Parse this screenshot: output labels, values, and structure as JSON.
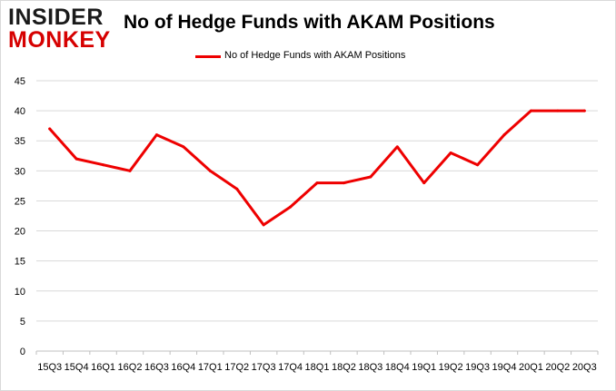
{
  "logo": {
    "line1": "INSIDER",
    "line2": "MONKEY"
  },
  "colors": {
    "series": "#ee0000",
    "grid": "#d9d9d9",
    "logo_dark": "#1a1a1a",
    "logo_red": "#d60000"
  },
  "chart_data": {
    "type": "line",
    "title": "No of Hedge Funds with AKAM Positions",
    "xlabel": "",
    "ylabel": "",
    "ylim": [
      0,
      45
    ],
    "yticks": [
      0,
      5,
      10,
      15,
      20,
      25,
      30,
      35,
      40,
      45
    ],
    "grid": true,
    "legend_position": "top-center",
    "categories": [
      "15Q3",
      "15Q4",
      "16Q1",
      "16Q2",
      "16Q3",
      "16Q4",
      "17Q1",
      "17Q2",
      "17Q3",
      "17Q4",
      "18Q1",
      "18Q2",
      "18Q3",
      "18Q4",
      "19Q1",
      "19Q2",
      "19Q3",
      "19Q4",
      "20Q1",
      "20Q2",
      "20Q3"
    ],
    "series": [
      {
        "name": "No of Hedge Funds with AKAM Positions",
        "color": "#ee0000",
        "values": [
          37,
          32,
          31,
          30,
          36,
          34,
          30,
          27,
          21,
          24,
          28,
          28,
          29,
          34,
          28,
          33,
          31,
          36,
          40,
          40,
          40
        ]
      }
    ]
  }
}
